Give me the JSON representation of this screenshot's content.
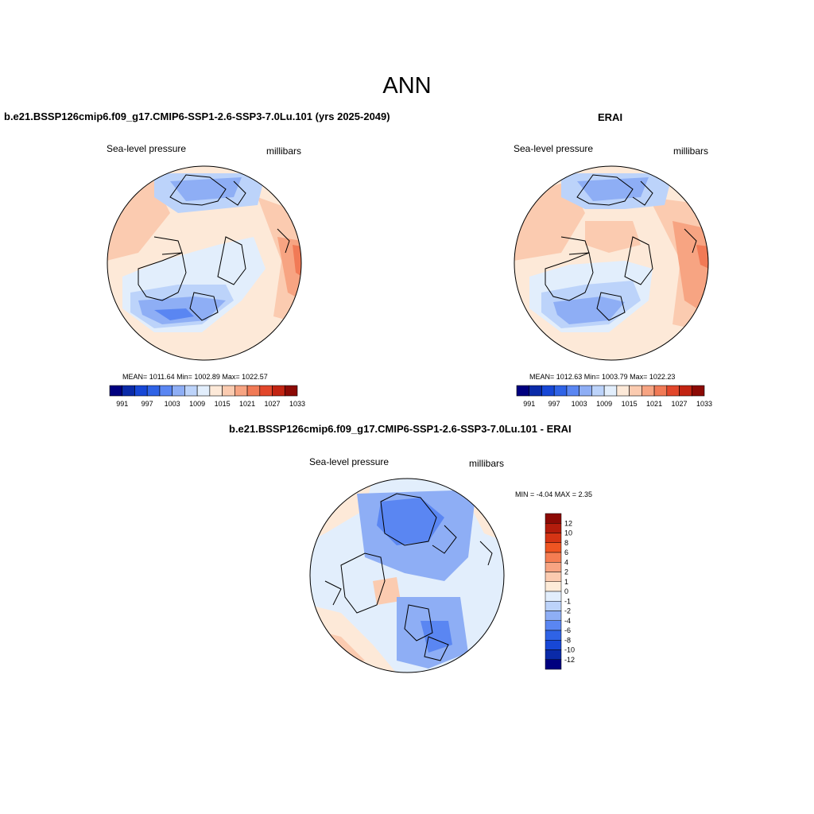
{
  "main_title": "ANN",
  "panel_left": {
    "title": "b.e21.BSSP126cmip6.f09_g17.CMIP6-SSP1-2.6-SSP3-7.0Lu.101 (yrs 2025-2049)",
    "left_label": "Sea-level pressure",
    "right_label": "millibars",
    "stats": "MEAN= 1011.64  Min= 1002.89  Max= 1022.57"
  },
  "panel_right": {
    "title": "ERAI",
    "left_label": "Sea-level pressure",
    "right_label": "millibars",
    "stats": "MEAN= 1012.63  Min= 1003.79  Max= 1022.23"
  },
  "panel_diff": {
    "title": "b.e21.BSSP126cmip6.f09_g17.CMIP6-SSP1-2.6-SSP3-7.0Lu.101 - ERAI",
    "left_label": "Sea-level pressure",
    "right_label": "millibars",
    "stats": "MIN =  -4.04 MAX =   2.35"
  },
  "colorbar_abs": {
    "colors": [
      "#00007f",
      "#0a2aa8",
      "#1747d6",
      "#2f63e6",
      "#5a86f2",
      "#8eaef5",
      "#bcd3fa",
      "#e2eefc",
      "#fde9d8",
      "#fbcbb0",
      "#f7a482",
      "#f17a56",
      "#e2472b",
      "#c22412",
      "#8c0a05"
    ],
    "tick_labels": [
      "991",
      "997",
      "1003",
      "1009",
      "1015",
      "1021",
      "1027",
      "1033"
    ]
  },
  "colorbar_diff": {
    "colors": [
      "#8c0a05",
      "#b31c0c",
      "#d53414",
      "#ef5522",
      "#f57d52",
      "#f7a482",
      "#fbcbb0",
      "#fdebd8",
      "#e2eefc",
      "#bcd3fa",
      "#8eaef5",
      "#5a86f2",
      "#2f63e6",
      "#1747d6",
      "#0a2aa8",
      "#00007f"
    ],
    "tick_labels": [
      "12",
      "10",
      "8",
      "6",
      "4",
      "2",
      "1",
      "0",
      "-1",
      "-2",
      "-4",
      "-6",
      "-8",
      "-10",
      "-12"
    ]
  }
}
